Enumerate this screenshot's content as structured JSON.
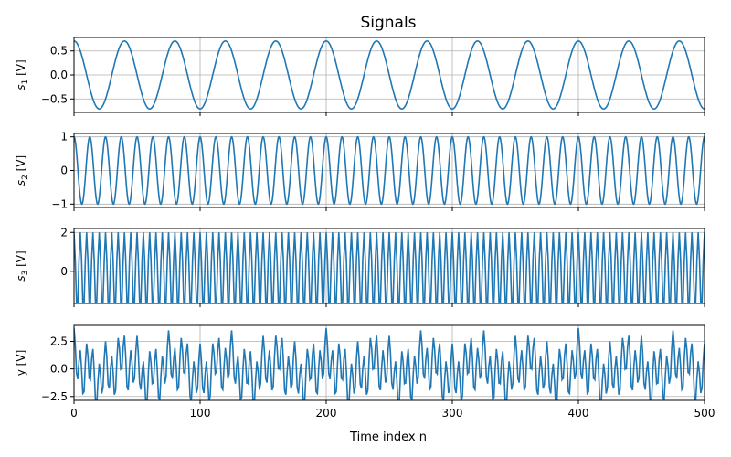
{
  "figure": {
    "title": "Signals",
    "xlabel": "Time index n"
  },
  "chart_data": [
    {
      "type": "line",
      "ylabel_main": "s",
      "ylabel_sub": "1",
      "ylabel_unit": "[V]",
      "xlim": [
        0,
        500
      ],
      "ylim": [
        -0.78,
        0.78
      ],
      "yticks": [
        -0.5,
        0.0,
        0.5
      ],
      "ytick_labels": [
        "−0.5",
        "0.0",
        "0.5"
      ],
      "grid": true,
      "color": "#1f77b4",
      "series": [
        {
          "components": [
            {
              "amplitude": 0.7071,
              "period": 40,
              "phase": "cos"
            }
          ]
        }
      ]
    },
    {
      "type": "line",
      "ylabel_main": "s",
      "ylabel_sub": "2",
      "ylabel_unit": "[V]",
      "xlim": [
        0,
        500
      ],
      "ylim": [
        -1.1,
        1.1
      ],
      "yticks": [
        -1,
        0,
        1
      ],
      "ytick_labels": [
        "−1",
        "0",
        "1"
      ],
      "grid": true,
      "color": "#1f77b4",
      "series": [
        {
          "components": [
            {
              "amplitude": 1.0,
              "period": 12.5,
              "phase": "cos"
            }
          ]
        }
      ]
    },
    {
      "type": "line",
      "ylabel_main": "s",
      "ylabel_sub": "3",
      "ylabel_unit": "[V]",
      "xlim": [
        0,
        500
      ],
      "ylim": [
        -1.65,
        2.2
      ],
      "yticks": [
        0,
        2
      ],
      "ytick_labels": [
        "0",
        "2"
      ],
      "grid": true,
      "color": "#1f77b4",
      "series": [
        {
          "components": [
            {
              "amplitude": 2.0,
              "period": 5.0,
              "phase": "sampled",
              "min_clip": -1.618
            }
          ]
        }
      ]
    },
    {
      "type": "line",
      "ylabel_main": "y",
      "ylabel_sub": "",
      "ylabel_unit": "[V]",
      "xlim": [
        0,
        500
      ],
      "ylim": [
        -2.85,
        3.95
      ],
      "yticks": [
        -2.5,
        0.0,
        2.5
      ],
      "ytick_labels": [
        "−2.5",
        "0.0",
        "2.5"
      ],
      "xticks": [
        0,
        100,
        200,
        300,
        400,
        500
      ],
      "xtick_labels": [
        "0",
        "100",
        "200",
        "300",
        "400",
        "500"
      ],
      "grid": true,
      "color": "#1f77b4",
      "series": [
        {
          "components": "sum of s1, s2, s3"
        }
      ]
    }
  ]
}
